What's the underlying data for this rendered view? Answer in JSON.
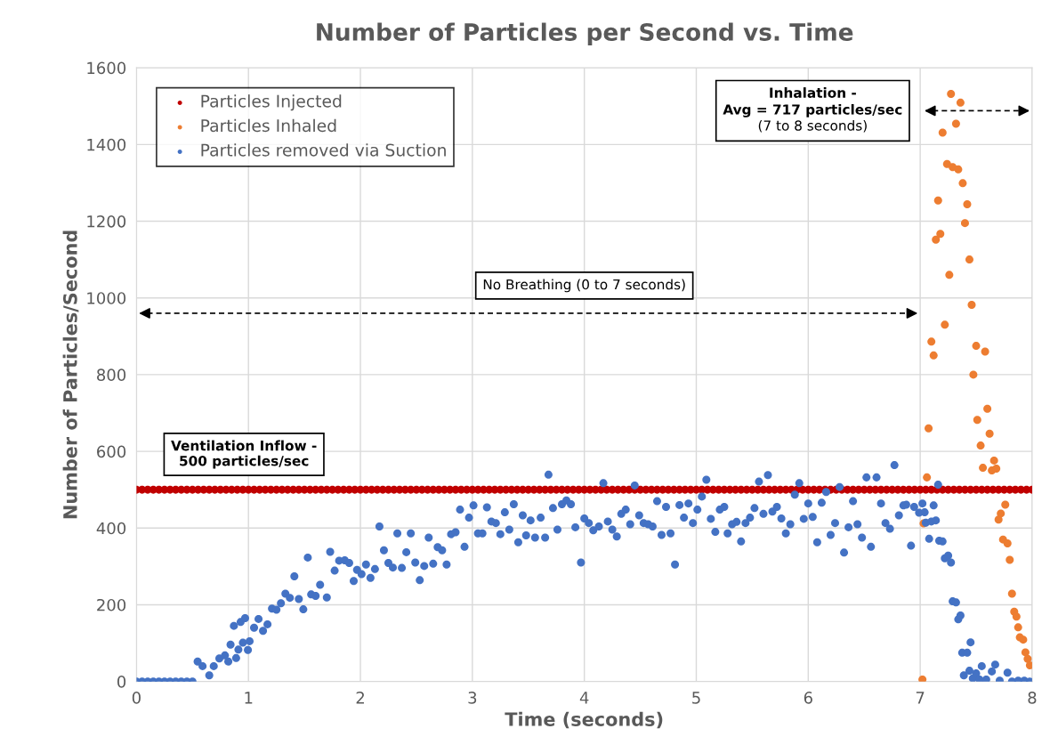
{
  "chart_data": {
    "type": "scatter",
    "title": "Number of Particles per Second vs. Time",
    "xlabel": "Time (seconds)",
    "ylabel": "Number of Particles/Second",
    "xlim": [
      0,
      8
    ],
    "xticks": [
      0,
      1,
      2,
      3,
      4,
      5,
      6,
      7,
      8
    ],
    "ylim": [
      0,
      1600
    ],
    "yticks": [
      0,
      200,
      400,
      600,
      800,
      1000,
      1200,
      1400,
      1600
    ],
    "grid": true,
    "legend": "top left",
    "marker": "circle",
    "annotations": [
      "Ventilation Inflow -\n500 particles/sec",
      "No Breathing (0 to 7 seconds)",
      "Inhalation -\nAvg = 717 particles/sec\n(7 to 8 seconds)"
    ],
    "series": [
      {
        "name": "Particles Injected",
        "color": "#c00000",
        "x": [
          0,
          0.05,
          0.1,
          0.15,
          0.2,
          0.25,
          0.3,
          0.35,
          0.4,
          0.45,
          0.5,
          0.55,
          0.6,
          0.65,
          0.7,
          0.75,
          0.8,
          0.85,
          0.9,
          0.95,
          1,
          1.05,
          1.1,
          1.15,
          1.2,
          1.25,
          1.3,
          1.35,
          1.4,
          1.45,
          1.5,
          1.55,
          1.6,
          1.65,
          1.7,
          1.75,
          1.8,
          1.85,
          1.9,
          1.95,
          2,
          2.05,
          2.1,
          2.15,
          2.2,
          2.25,
          2.3,
          2.35,
          2.4,
          2.45,
          2.5,
          2.55,
          2.6,
          2.65,
          2.7,
          2.75,
          2.8,
          2.85,
          2.9,
          2.95,
          3,
          3.05,
          3.1,
          3.15,
          3.2,
          3.25,
          3.3,
          3.35,
          3.4,
          3.45,
          3.5,
          3.55,
          3.6,
          3.65,
          3.7,
          3.75,
          3.8,
          3.85,
          3.9,
          3.95,
          4,
          4.05,
          4.1,
          4.15,
          4.2,
          4.25,
          4.3,
          4.35,
          4.4,
          4.45,
          4.5,
          4.55,
          4.6,
          4.65,
          4.7,
          4.75,
          4.8,
          4.85,
          4.9,
          4.95,
          5,
          5.05,
          5.1,
          5.15,
          5.2,
          5.25,
          5.3,
          5.35,
          5.4,
          5.45,
          5.5,
          5.55,
          5.6,
          5.65,
          5.7,
          5.75,
          5.8,
          5.85,
          5.9,
          5.95,
          6,
          6.05,
          6.1,
          6.15,
          6.2,
          6.25,
          6.3,
          6.35,
          6.4,
          6.45,
          6.5,
          6.55,
          6.6,
          6.65,
          6.7,
          6.75,
          6.8,
          6.85,
          6.9,
          6.95,
          7,
          7.05,
          7.1,
          7.15,
          7.2,
          7.25,
          7.3,
          7.35,
          7.4,
          7.45,
          7.5,
          7.55,
          7.6,
          7.65,
          7.7,
          7.75,
          7.8,
          7.85,
          7.9,
          7.95,
          8
        ],
        "values": [
          500,
          500,
          500,
          500,
          500,
          500,
          500,
          500,
          500,
          500,
          500,
          500,
          500,
          500,
          500,
          500,
          500,
          500,
          500,
          500,
          500,
          500,
          500,
          500,
          500,
          500,
          500,
          500,
          500,
          500,
          500,
          500,
          500,
          500,
          500,
          500,
          500,
          500,
          500,
          500,
          500,
          500,
          500,
          500,
          500,
          500,
          500,
          500,
          500,
          500,
          500,
          500,
          500,
          500,
          500,
          500,
          500,
          500,
          500,
          500,
          500,
          500,
          500,
          500,
          500,
          500,
          500,
          500,
          500,
          500,
          500,
          500,
          500,
          500,
          500,
          500,
          500,
          500,
          500,
          500,
          500,
          500,
          500,
          500,
          500,
          500,
          500,
          500,
          500,
          500,
          500,
          500,
          500,
          500,
          500,
          500,
          500,
          500,
          500,
          500,
          500,
          500,
          500,
          500,
          500,
          500,
          500,
          500,
          500,
          500,
          500,
          500,
          500,
          500,
          500,
          500,
          500,
          500,
          500,
          500,
          500,
          500,
          500,
          500,
          500,
          500,
          500,
          500,
          500,
          500,
          500,
          500,
          500,
          500,
          500,
          500,
          500,
          500,
          500,
          500,
          500,
          500,
          500,
          500,
          500,
          500,
          500,
          500,
          500,
          500,
          500,
          500,
          500,
          500,
          500,
          500,
          500,
          500,
          500,
          500,
          500
        ]
      },
      {
        "name": "Particles Inhaled",
        "color": "#ed7d31",
        "x": [
          7.02,
          7.03,
          7.06,
          7.075,
          7.1,
          7.12,
          7.14,
          7.16,
          7.18,
          7.2,
          7.22,
          7.24,
          7.26,
          7.275,
          7.29,
          7.32,
          7.34,
          7.36,
          7.38,
          7.4,
          7.42,
          7.44,
          7.46,
          7.475,
          7.5,
          7.51,
          7.54,
          7.56,
          7.58,
          7.6,
          7.62,
          7.64,
          7.66,
          7.68,
          7.7,
          7.72,
          7.74,
          7.76,
          7.78,
          7.8,
          7.82,
          7.84,
          7.86,
          7.875,
          7.89,
          7.92,
          7.94,
          7.96,
          7.98
        ],
        "values": [
          5,
          412,
          532,
          660,
          886,
          850,
          1152,
          1254,
          1167,
          1431,
          930,
          1349,
          1060,
          1532,
          1341,
          1454,
          1335,
          1509,
          1299,
          1195,
          1244,
          1100,
          982,
          800,
          875,
          682,
          615,
          557,
          860,
          711,
          646,
          550,
          576,
          555,
          422,
          438,
          370,
          461,
          360,
          317,
          229,
          182,
          169,
          141,
          115,
          109,
          76,
          59,
          42
        ]
      },
      {
        "name": "Particles removed via Suction",
        "color": "#4472c4",
        "x": [
          0,
          0.05,
          0.1,
          0.15,
          0.2,
          0.25,
          0.3,
          0.35,
          0.4,
          0.45,
          0.5,
          0.546,
          0.59,
          0.65,
          0.69,
          0.74,
          0.79,
          0.82,
          0.84,
          0.87,
          0.89,
          0.91,
          0.93,
          0.95,
          0.97,
          0.995,
          1.01,
          1.05,
          1.09,
          1.13,
          1.17,
          1.21,
          1.25,
          1.29,
          1.33,
          1.37,
          1.41,
          1.45,
          1.49,
          1.53,
          1.56,
          1.6,
          1.64,
          1.7,
          1.73,
          1.77,
          1.81,
          1.86,
          1.9,
          1.94,
          1.97,
          2.01,
          2.05,
          2.09,
          2.13,
          2.17,
          2.21,
          2.25,
          2.29,
          2.33,
          2.37,
          2.41,
          2.45,
          2.49,
          2.53,
          2.57,
          2.61,
          2.65,
          2.69,
          2.73,
          2.77,
          2.81,
          2.85,
          2.89,
          2.93,
          2.97,
          3.01,
          3.05,
          3.09,
          3.13,
          3.17,
          3.21,
          3.25,
          3.29,
          3.33,
          3.37,
          3.41,
          3.45,
          3.48,
          3.52,
          3.56,
          3.61,
          3.65,
          3.68,
          3.72,
          3.76,
          3.8,
          3.84,
          3.88,
          3.92,
          3.97,
          4,
          4.04,
          4.08,
          4.13,
          4.17,
          4.21,
          4.25,
          4.29,
          4.33,
          4.37,
          4.41,
          4.45,
          4.49,
          4.53,
          4.57,
          4.61,
          4.65,
          4.69,
          4.73,
          4.77,
          4.81,
          4.85,
          4.89,
          4.93,
          4.97,
          5.01,
          5.05,
          5.09,
          5.13,
          5.17,
          5.21,
          5.25,
          5.28,
          5.32,
          5.36,
          5.4,
          5.44,
          5.48,
          5.52,
          5.56,
          5.6,
          5.64,
          5.68,
          5.72,
          5.76,
          5.8,
          5.84,
          5.88,
          5.92,
          5.96,
          6,
          6.04,
          6.08,
          6.12,
          6.16,
          6.2,
          6.24,
          6.28,
          6.32,
          6.36,
          6.4,
          6.44,
          6.48,
          6.52,
          6.56,
          6.61,
          6.65,
          6.69,
          6.73,
          6.77,
          6.81,
          6.85,
          6.875,
          6.918,
          6.946,
          6.99,
          7.02,
          7.04,
          7.05,
          7.08,
          7.1,
          7.12,
          7.14,
          7.16,
          7.17,
          7.2,
          7.22,
          7.25,
          7.275,
          7.29,
          7.32,
          7.34,
          7.36,
          7.375,
          7.39,
          7.42,
          7.44,
          7.45,
          7.47,
          7.5,
          7.53,
          7.55,
          7.59,
          7.64,
          7.67,
          7.71,
          7.78,
          7.82,
          7.875,
          7.93,
          7.98
        ],
        "values": [
          0,
          0,
          0,
          0,
          0,
          0,
          0,
          0,
          0,
          0,
          0,
          52,
          40,
          16,
          40,
          60,
          68,
          52,
          96,
          145,
          61,
          83,
          155,
          101,
          165,
          82,
          105,
          140,
          163,
          132,
          149,
          190,
          187,
          204,
          229,
          218,
          274,
          215,
          188,
          323,
          227,
          223,
          252,
          219,
          338,
          289,
          315,
          316,
          309,
          262,
          291,
          280,
          305,
          270,
          293,
          404,
          342,
          309,
          297,
          386,
          296,
          337,
          386,
          310,
          264,
          301,
          375,
          307,
          350,
          342,
          305,
          384,
          389,
          448,
          351,
          427,
          459,
          386,
          386,
          454,
          417,
          413,
          384,
          441,
          396,
          462,
          363,
          433,
          381,
          420,
          375,
          427,
          375,
          539,
          452,
          396,
          462,
          472,
          462,
          402,
          310,
          425,
          413,
          394,
          404,
          517,
          417,
          396,
          378,
          437,
          448,
          410,
          511,
          433,
          413,
          410,
          404,
          470,
          382,
          455,
          386,
          305,
          460,
          427,
          464,
          413,
          448,
          482,
          526,
          424,
          390,
          448,
          455,
          386,
          410,
          416,
          365,
          413,
          427,
          452,
          521,
          437,
          538,
          443,
          455,
          425,
          386,
          410,
          487,
          517,
          424,
          464,
          429,
          363,
          466,
          494,
          382,
          413,
          507,
          336,
          402,
          470,
          410,
          375,
          532,
          351,
          532,
          464,
          413,
          398,
          564,
          433,
          459,
          461,
          354,
          455,
          440,
          464,
          441,
          414,
          372,
          417,
          459,
          420,
          513,
          367,
          365,
          321,
          328,
          310,
          209,
          206,
          162,
          172,
          75,
          16,
          75,
          28,
          102,
          8,
          21,
          5,
          40,
          5,
          26,
          44,
          2,
          23,
          0,
          2,
          2,
          0
        ]
      }
    ]
  }
}
